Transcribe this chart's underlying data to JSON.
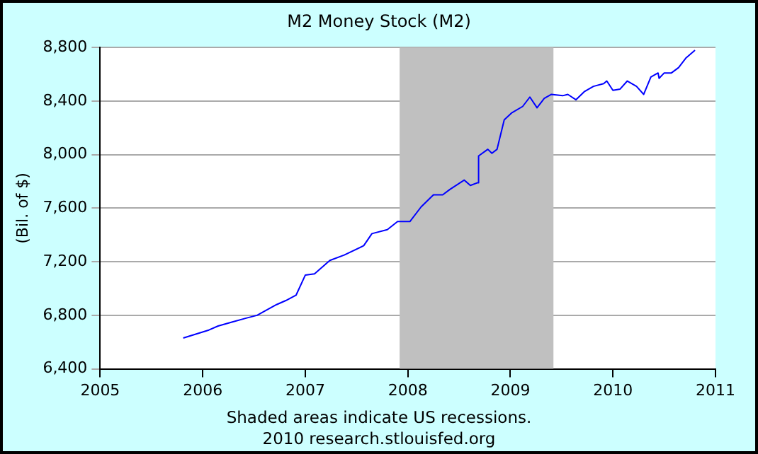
{
  "chart_data": {
    "type": "line",
    "title": "M2 Money Stock (M2)",
    "ylabel": "(Bil. of $)",
    "annotations": [
      "Shaded areas indicate US recessions.",
      "2010 research.stlouisfed.org"
    ],
    "series": [
      {
        "color": "#0000ff",
        "x": [
          2005.81,
          2006.06,
          2006.15,
          2006.29,
          2006.43,
          2006.53,
          2006.72,
          2006.81,
          2006.91,
          2007.0,
          2007.09,
          2007.24,
          2007.38,
          2007.57,
          2007.65,
          2007.8,
          2007.9,
          2008.02,
          2008.13,
          2008.25,
          2008.34,
          2008.41,
          2008.55,
          2008.61,
          2008.68,
          2008.69,
          2008.78,
          2008.82,
          2008.87,
          2008.94,
          2009.01,
          2009.12,
          2009.19,
          2009.26,
          2009.33,
          2009.4,
          2009.51,
          2009.56,
          2009.64,
          2009.72,
          2009.81,
          2009.91,
          2009.94,
          2010.0,
          2010.07,
          2010.14,
          2010.23,
          2010.3,
          2010.37,
          2010.44,
          2010.45,
          2010.5,
          2010.57,
          2010.64,
          2010.71,
          2010.8
        ],
        "values": [
          6630,
          6690,
          6720,
          6750,
          6780,
          6800,
          6880,
          6910,
          6950,
          7100,
          7110,
          7210,
          7250,
          7320,
          7410,
          7440,
          7500,
          7500,
          7610,
          7700,
          7700,
          7740,
          7810,
          7770,
          7790,
          7990,
          8040,
          8010,
          8040,
          8260,
          8310,
          8360,
          8430,
          8350,
          8420,
          8450,
          8440,
          8450,
          8410,
          8470,
          8510,
          8530,
          8550,
          8480,
          8490,
          8550,
          8510,
          8450,
          8580,
          8610,
          8570,
          8610,
          8610,
          8650,
          8720,
          8780
        ]
      }
    ],
    "xlim": [
      2005,
      2011
    ],
    "xticks": [
      2005,
      2006,
      2007,
      2008,
      2009,
      2010,
      2011
    ],
    "ylim": [
      6400,
      8800
    ],
    "yticks": [
      {
        "value": 6400,
        "label": "6,400"
      },
      {
        "value": 6800,
        "label": "6,800"
      },
      {
        "value": 7200,
        "label": "7,200"
      },
      {
        "value": 7600,
        "label": "7,600"
      },
      {
        "value": 8000,
        "label": "8,000"
      },
      {
        "value": 8400,
        "label": "8,400"
      },
      {
        "value": 8800,
        "label": "8,800"
      }
    ],
    "grid": "y",
    "legend": false,
    "bands": [
      {
        "axis": "x",
        "from": 2007.92,
        "to": 2009.42,
        "color": "#c0c0c0"
      }
    ]
  }
}
